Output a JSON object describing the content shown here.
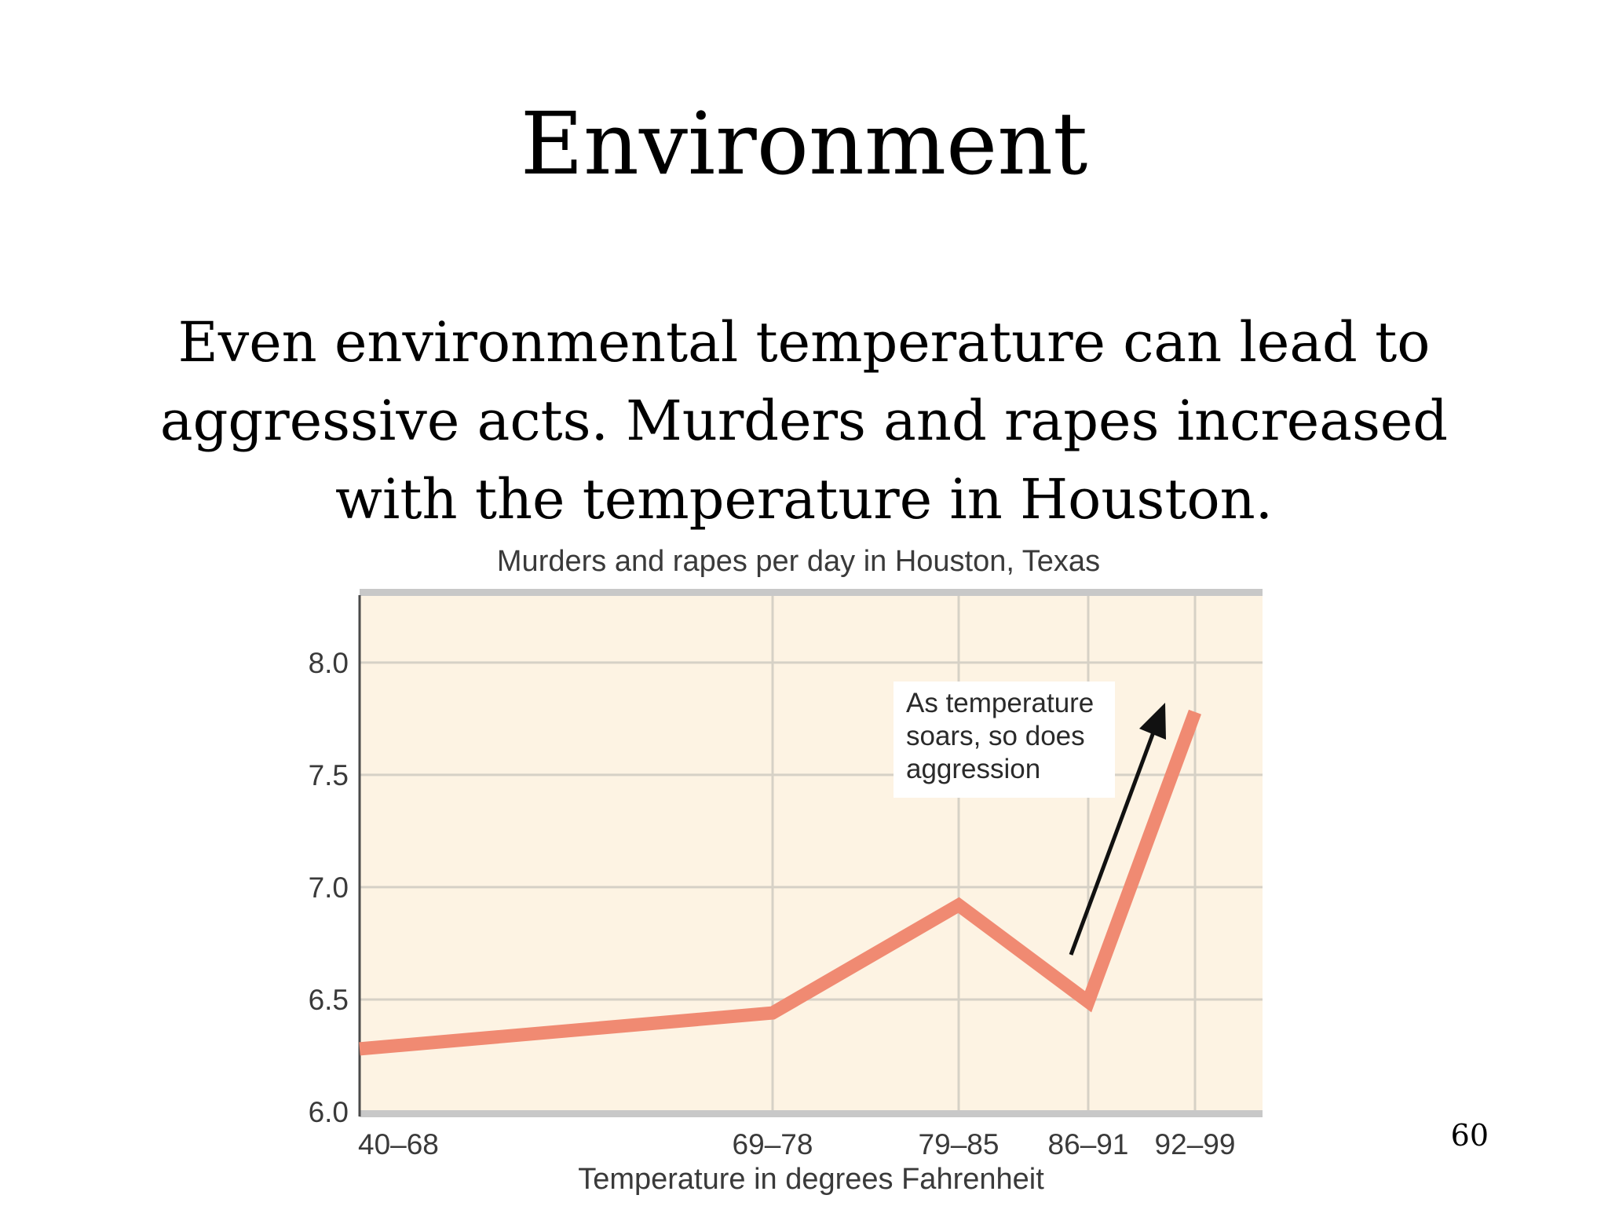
{
  "slide": {
    "title": "Environment",
    "body_lines": [
      "Even environmental temperature can lead to",
      "aggressive acts. Murders and rapes increased",
      "with the temperature in Houston."
    ],
    "page_number": "60"
  },
  "chart_data": {
    "type": "line",
    "title": "Murders and rapes per day in Houston, Texas",
    "xlabel": "Temperature in degrees Fahrenheit",
    "ylabel": "",
    "categories": [
      "40–68",
      "69–78",
      "79–85",
      "86–91",
      "92–99"
    ],
    "series": [
      {
        "values": [
          6.28,
          6.44,
          6.92,
          6.49,
          7.78
        ]
      }
    ],
    "ylim": [
      6.0,
      8.3
    ],
    "yticks": [
      "6.0",
      "6.5",
      "7.0",
      "7.5",
      "8.0"
    ],
    "grid": true,
    "annotation": {
      "lines": [
        "As temperature",
        "soars, so does",
        "aggression"
      ]
    },
    "colors": {
      "plot_background": "#fdf3e3",
      "grid": "#d6d1c6",
      "series_line": "#f08a72",
      "axis_text": "#3a3a3a",
      "arrow": "#111111",
      "frame": "#c8c8c8"
    }
  }
}
